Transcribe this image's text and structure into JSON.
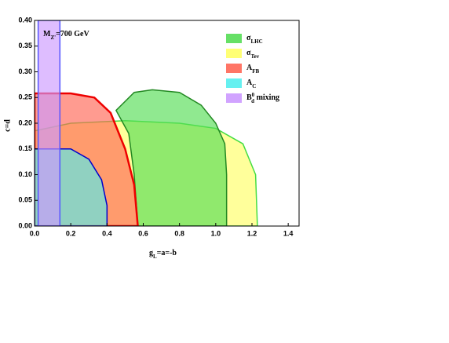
{
  "chart_data": {
    "type": "region",
    "annotation": {
      "text": "M",
      "subscript": "Z'",
      "suffix": "=700 GeV"
    },
    "x_label": {
      "text": "g",
      "subscript": "L",
      "suffix": "=a=-b"
    },
    "y_label": "c=d",
    "xlim": [
      0,
      1.46
    ],
    "xticks": [
      {
        "value": 0,
        "label": "0.0"
      },
      0.2,
      0.4,
      0.6,
      0.8,
      {
        "value": 1,
        "label": "1.0"
      },
      1.2,
      1.4
    ],
    "ylim": [
      0,
      0.4
    ],
    "yticks": [
      {
        "value": 0,
        "label": "0.00"
      },
      0.05,
      {
        "value": 0.1,
        "label": "0.10"
      },
      0.15,
      {
        "value": 0.2,
        "label": "0.20"
      },
      0.25,
      {
        "value": 0.3,
        "label": "0.30"
      },
      0.35,
      {
        "value": 0.4,
        "label": "0.40"
      }
    ],
    "series": [
      {
        "name": "σ",
        "subscript": "Tev",
        "color": "#ffff66",
        "stroke": "#44dd44",
        "x": [
          0,
          0,
          0.2,
          0.5,
          0.8,
          1.0,
          1.15,
          1.22,
          1.23
        ],
        "values": [
          0,
          0.185,
          0.2,
          0.205,
          0.2,
          0.19,
          0.16,
          0.1,
          0
        ]
      },
      {
        "name": "σ",
        "subscript": "LHC",
        "color": "#55dd55",
        "stroke": "#228822",
        "x": [
          0.57,
          0.55,
          0.52,
          0.45,
          0.55,
          0.65,
          0.8,
          0.92,
          1.0,
          1.05,
          1.06,
          1.06
        ],
        "values": [
          0,
          0.1,
          0.18,
          0.225,
          0.26,
          0.265,
          0.26,
          0.235,
          0.2,
          0.16,
          0.1,
          0
        ]
      },
      {
        "name": "A",
        "subscript": "FB",
        "color": "#ff6655",
        "stroke": "#ee0000",
        "x": [
          0,
          0,
          0.2,
          0.33,
          0.42,
          0.5,
          0.55,
          0.57
        ],
        "values": [
          0,
          0.258,
          0.258,
          0.25,
          0.22,
          0.15,
          0.08,
          0
        ]
      },
      {
        "name": "A",
        "subscript": "C",
        "color": "#55eeee",
        "stroke": "#0000cc",
        "x": [
          0,
          0,
          0.2,
          0.3,
          0.37,
          0.4,
          0.4
        ],
        "values": [
          0,
          0.15,
          0.15,
          0.13,
          0.09,
          0.04,
          0
        ]
      },
      {
        "name": "B",
        "superscript": "0",
        "subscript": "d",
        "suffix": " mixing",
        "color": "#cc99ff",
        "stroke": "#5555ff",
        "x": [
          0.02,
          0.02,
          0.14,
          0.14
        ],
        "values": [
          0,
          0.4,
          0.4,
          0
        ]
      }
    ]
  }
}
